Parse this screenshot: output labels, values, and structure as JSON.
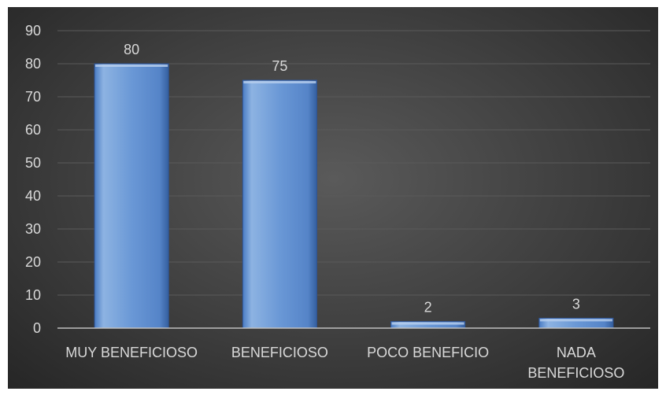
{
  "chart_data": {
    "type": "bar",
    "categories": [
      "MUY BENEFICIOSO",
      "BENEFICIOSO",
      "POCO BENEFICIO",
      "NADA BENEFICIOSO"
    ],
    "category_lines": [
      [
        "MUY BENEFICIOSO"
      ],
      [
        "BENEFICIOSO"
      ],
      [
        "POCO BENEFICIO"
      ],
      [
        "NADA",
        "BENEFICIOSO"
      ]
    ],
    "values": [
      80,
      75,
      2,
      3
    ],
    "title": "",
    "xlabel": "",
    "ylabel": "",
    "ylim": [
      0,
      90
    ],
    "yticks": [
      0,
      10,
      20,
      30,
      40,
      50,
      60,
      70,
      80,
      90
    ],
    "grid": true,
    "legend": "none",
    "colors": {
      "bar_top": "#8db3e2",
      "bar_bottom": "#3f6fb5",
      "bar_edge": "#2f5597",
      "background": "#3e3e3e",
      "text": "#d9d9d9"
    }
  }
}
